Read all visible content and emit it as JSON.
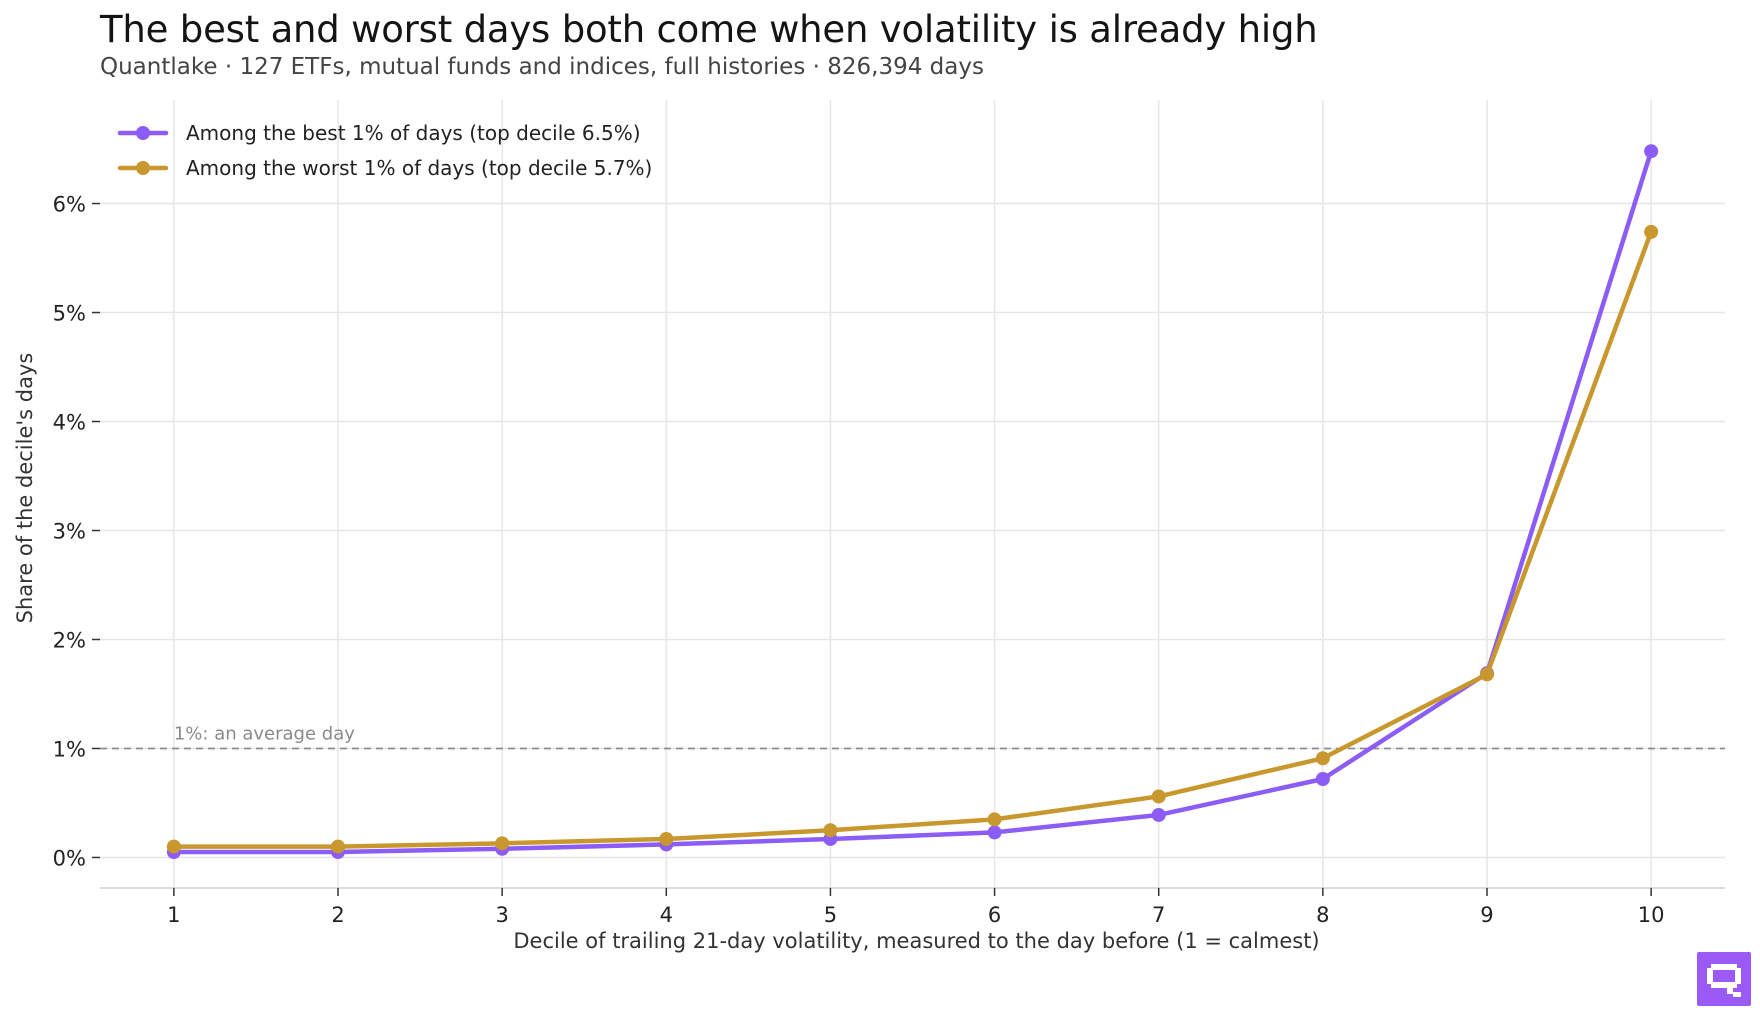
{
  "title": "The best and worst days both come when volatility is already high",
  "subtitle": "Quantlake · 127 ETFs, mutual funds and indices, full histories · 826,394 days",
  "colors": {
    "best": "#8b5cf6",
    "worst": "#c8982e",
    "grid": "#e6e6e6",
    "reference": "#8c8c99",
    "logo": "#9b59f6"
  },
  "logo_icon": "quantlake-q-logo-icon",
  "chart_data": {
    "type": "line",
    "x": [
      1,
      2,
      3,
      4,
      5,
      6,
      7,
      8,
      9,
      10
    ],
    "xlabel": "Decile of trailing 21-day volatility, measured to the day before (1 = calmest)",
    "ylabel": "Share of the decile's days",
    "ylim": [
      -0.28,
      6.95
    ],
    "yticks": [
      0,
      1,
      2,
      3,
      4,
      5,
      6
    ],
    "ytick_labels": [
      "0%",
      "1%",
      "2%",
      "3%",
      "4%",
      "5%",
      "6%"
    ],
    "xtick_labels": [
      "1",
      "2",
      "3",
      "4",
      "5",
      "6",
      "7",
      "8",
      "9",
      "10"
    ],
    "grid": true,
    "legend_position": "top-left",
    "reference_line": {
      "y": 1,
      "label": "1%: an average day"
    },
    "series": [
      {
        "name": "Among the best 1% of days (top decile 6.5%)",
        "color": "#8b5cf6",
        "values": [
          0.05,
          0.05,
          0.08,
          0.12,
          0.17,
          0.23,
          0.39,
          0.72,
          1.69,
          6.48
        ]
      },
      {
        "name": "Among the worst 1% of days (top decile 5.7%)",
        "color": "#c8982e",
        "values": [
          0.1,
          0.1,
          0.13,
          0.17,
          0.25,
          0.35,
          0.56,
          0.91,
          1.68,
          5.74
        ]
      }
    ]
  }
}
